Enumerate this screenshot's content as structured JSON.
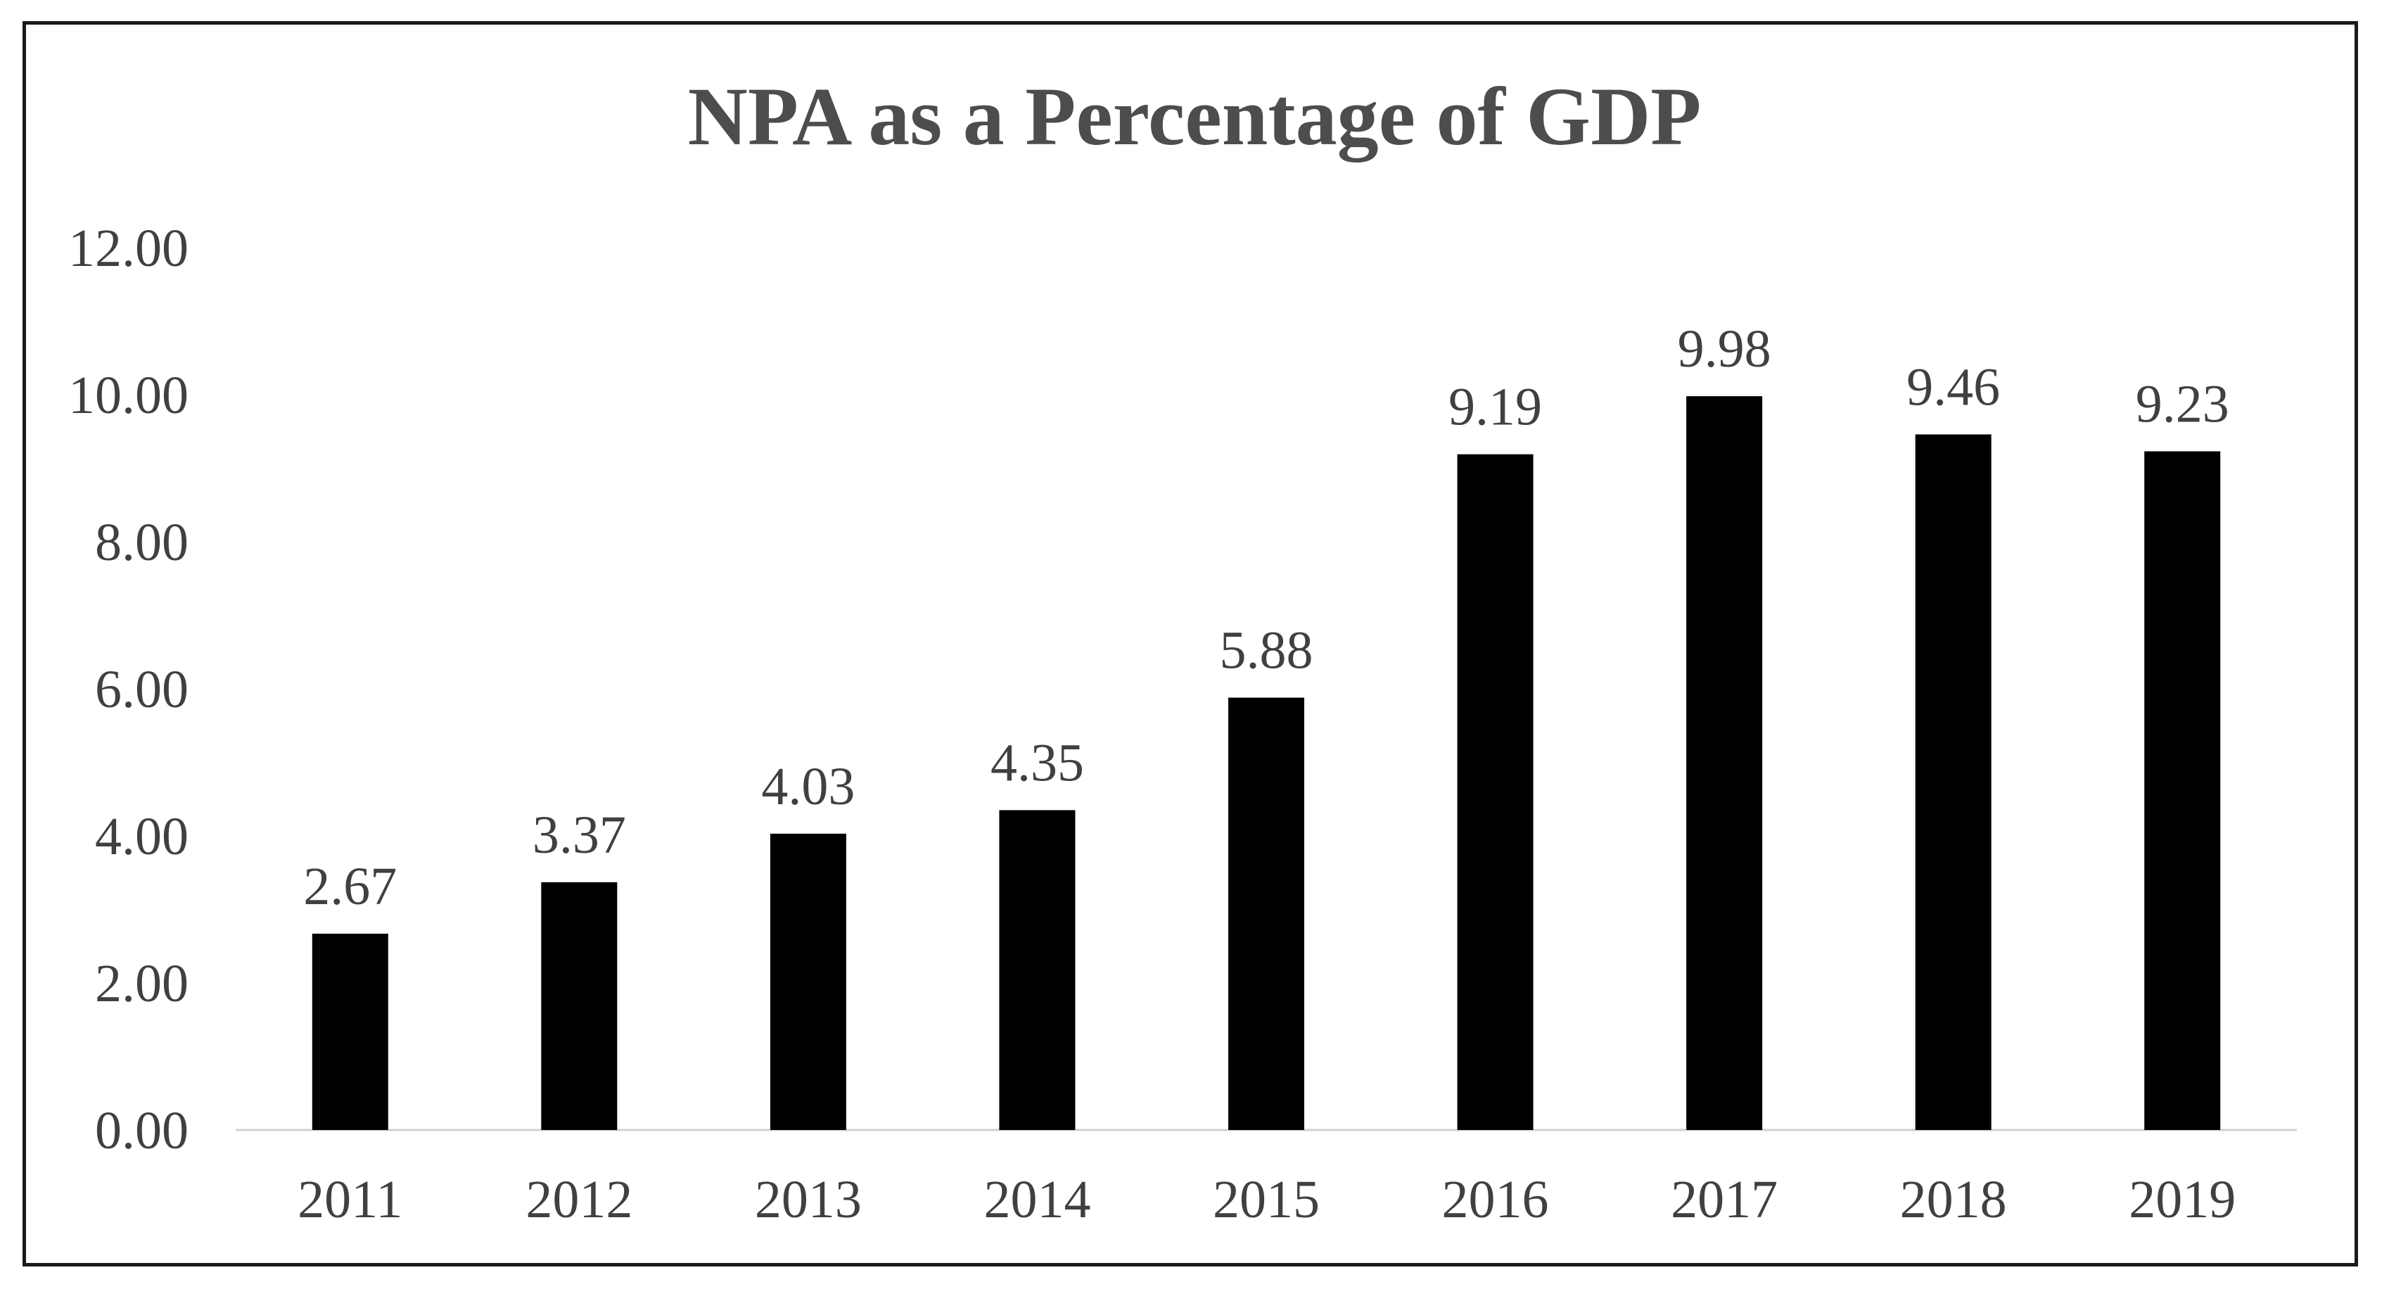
{
  "chart_data": {
    "type": "bar",
    "title": "NPA as a Percentage of GDP",
    "xlabel": "",
    "ylabel": "",
    "categories": [
      "2011",
      "2012",
      "2013",
      "2014",
      "2015",
      "2016",
      "2017",
      "2018",
      "2019"
    ],
    "values": [
      2.67,
      3.37,
      4.03,
      4.35,
      5.88,
      9.19,
      9.98,
      9.46,
      9.23
    ],
    "data_labels": [
      "2.67",
      "3.37",
      "4.03",
      "4.35",
      "5.88",
      "9.19",
      "9.98",
      "9.46",
      "9.23"
    ],
    "ylim": [
      0,
      12
    ],
    "y_ticks": [
      0,
      2,
      4,
      6,
      8,
      10,
      12
    ],
    "y_tick_labels": [
      "0.00",
      "2.00",
      "4.00",
      "6.00",
      "8.00",
      "10.00",
      "12.00"
    ],
    "grid": false,
    "legend": "none",
    "bar_color": "#000000"
  }
}
